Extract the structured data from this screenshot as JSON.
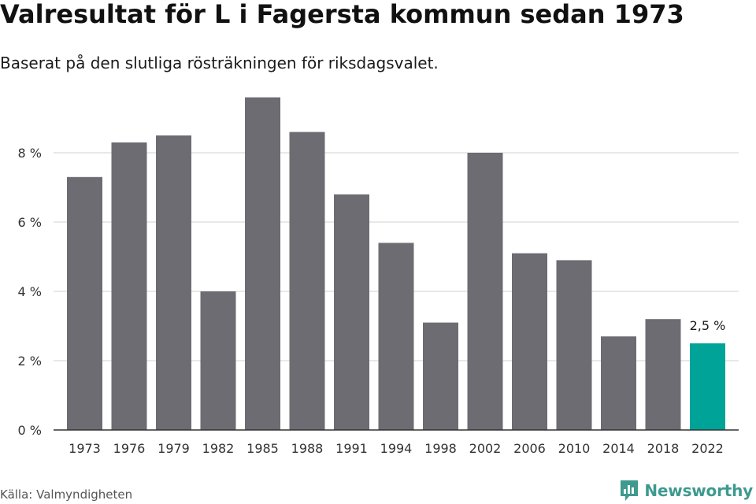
{
  "header": {
    "title": "Valresultat för L i Fagersta kommun sedan 1973",
    "subtitle": "Baserat på den slutliga rösträkningen för riksdagsvalet."
  },
  "footer": {
    "source": "Källa: Valmyndigheten",
    "brand": "Newsworthy",
    "brand_icon": "bar-chart-logo-icon"
  },
  "colors": {
    "bar": "#6d6c72",
    "highlight": "#00a398",
    "grid": "#d9d9d9",
    "axis": "#333333",
    "brand": "#3e9a8f"
  },
  "chart_data": {
    "type": "bar",
    "title": "Valresultat för L i Fagersta kommun sedan 1973",
    "subtitle": "Baserat på den slutliga rösträkningen för riksdagsvalet.",
    "xlabel": "",
    "ylabel": "",
    "categories": [
      "1973",
      "1976",
      "1979",
      "1982",
      "1985",
      "1988",
      "1991",
      "1994",
      "1998",
      "2002",
      "2006",
      "2010",
      "2014",
      "2018",
      "2022"
    ],
    "values": [
      7.3,
      8.3,
      8.5,
      4.0,
      9.6,
      8.6,
      6.8,
      5.4,
      3.1,
      8.0,
      5.1,
      4.9,
      2.7,
      3.2,
      2.5
    ],
    "ylim": [
      0,
      10
    ],
    "yticks": [
      0,
      2,
      4,
      6,
      8
    ],
    "ytick_labels": [
      "0 %",
      "2 %",
      "4 %",
      "6 %",
      "8 %"
    ],
    "grid": true,
    "highlight_index": 14,
    "data_labels": [
      {
        "index": 14,
        "text": "2,5 %"
      }
    ]
  }
}
